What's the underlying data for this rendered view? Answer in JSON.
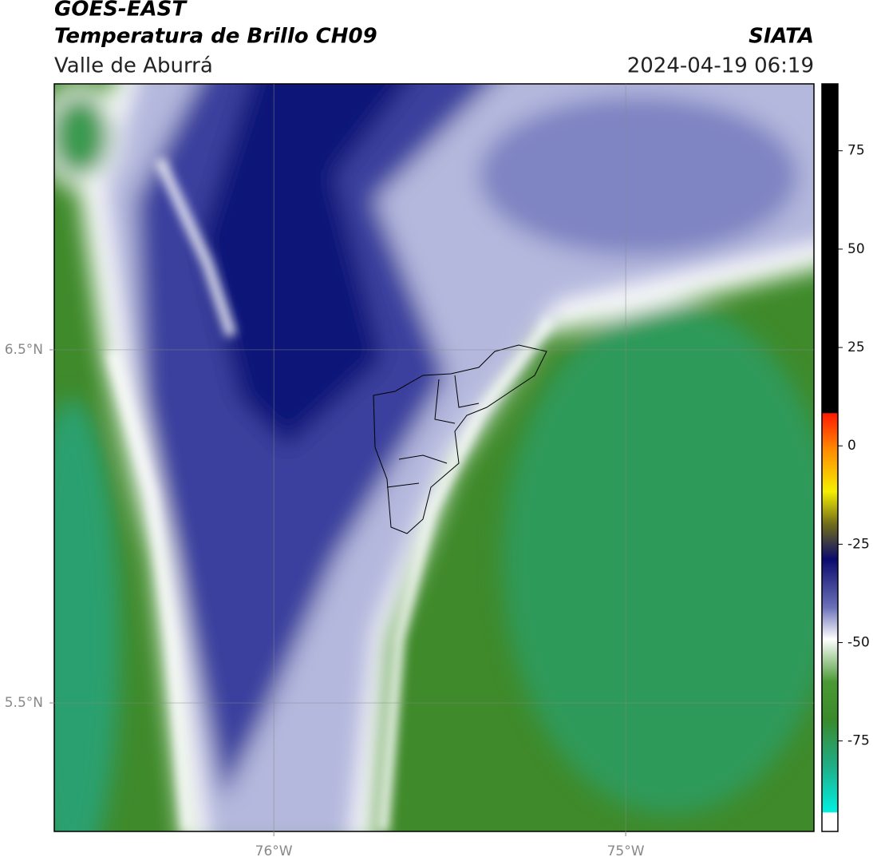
{
  "header": {
    "satellite": "GOES-EAST",
    "product": "Temperatura de Brillo CH09",
    "region": "Valle de Aburrá",
    "source": "SIATA",
    "datetime": "2024-04-19 06:19"
  },
  "map": {
    "lonlim": [
      -76.624,
      -74.465
    ],
    "latlim": [
      5.136,
      7.253
    ],
    "lon_ticks": [
      {
        "value": -76,
        "label": "76°W"
      },
      {
        "value": -75,
        "label": "75°W"
      }
    ],
    "lat_ticks": [
      {
        "value": 6.5,
        "label": "6.5°N"
      },
      {
        "value": 5.5,
        "label": "5.5°N"
      }
    ]
  },
  "colorbar": {
    "lim": [
      -98,
      92
    ],
    "ticks": [
      75,
      50,
      25,
      0,
      -25,
      -50,
      -75
    ]
  }
}
